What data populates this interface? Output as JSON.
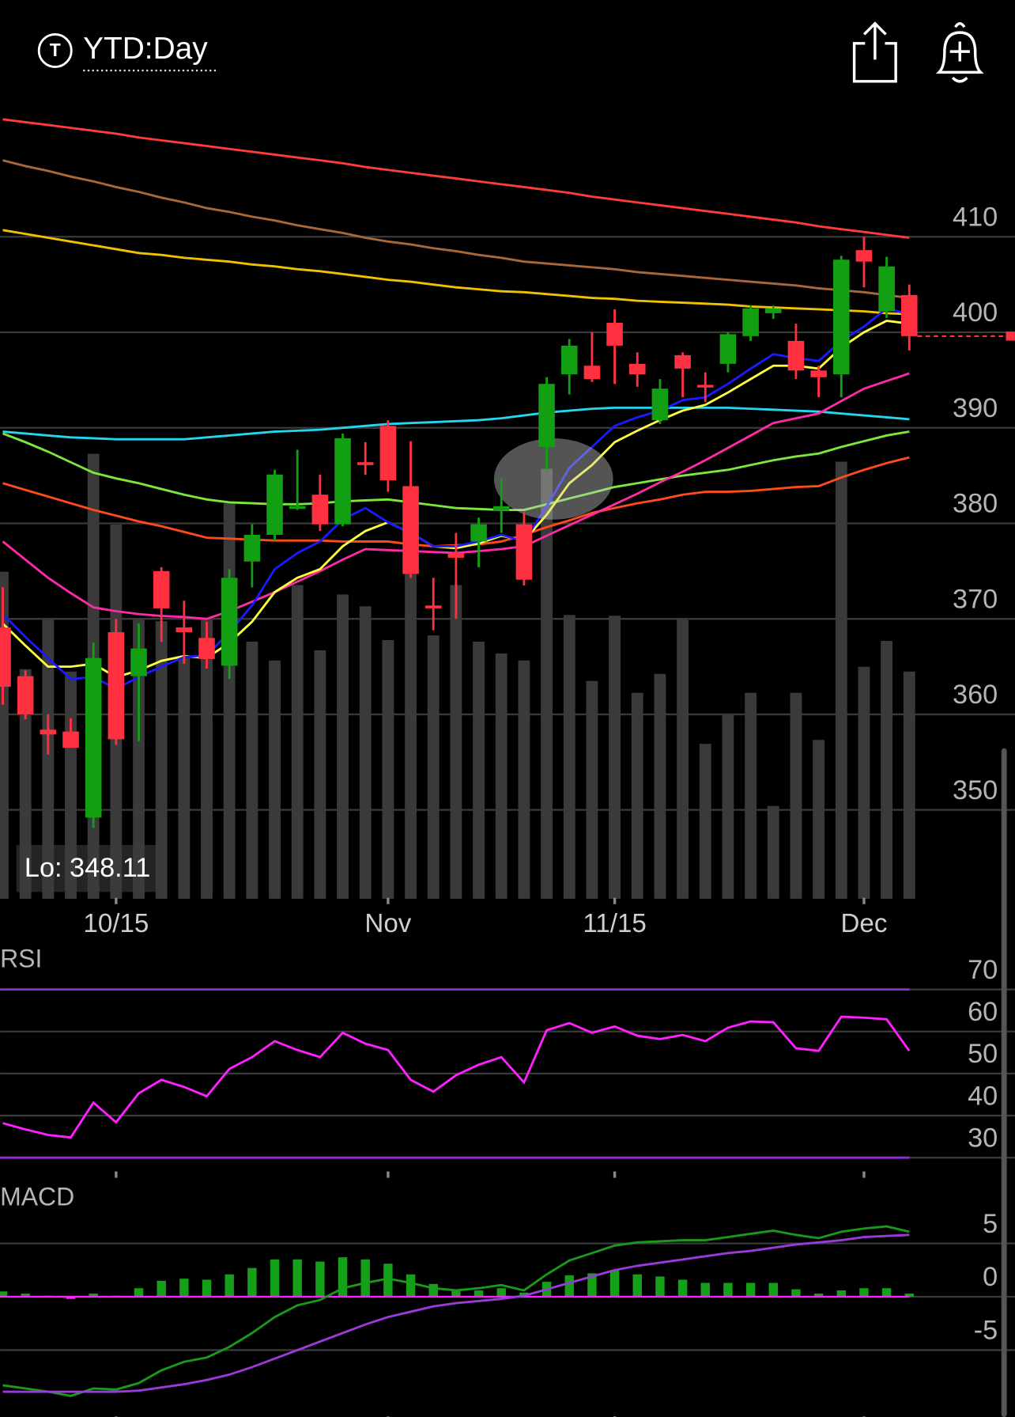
{
  "header": {
    "title": "YTD:Day"
  },
  "chart_data": [
    {
      "type": "candlestick",
      "categories": [
        null,
        null,
        null,
        null,
        null,
        "10/15",
        null,
        null,
        null,
        null,
        null,
        null,
        null,
        null,
        null,
        null,
        null,
        "Nov",
        null,
        null,
        null,
        null,
        null,
        null,
        null,
        null,
        null,
        "11/15",
        null,
        null,
        null,
        null,
        null,
        null,
        null,
        null,
        null,
        null,
        "Dec",
        null,
        null
      ],
      "open": [
        369.1,
        364.0,
        358.4,
        358.2,
        349.2,
        368.6,
        364.0,
        375.0,
        369.1,
        368.0,
        365.1,
        376.0,
        378.8,
        381.6,
        383.0,
        379.9,
        386.4,
        390.2,
        383.9,
        371.4,
        376.9,
        378.1,
        381.3,
        379.9,
        388.0,
        395.6,
        396.5,
        401.0,
        396.7,
        390.8,
        397.6,
        394.5,
        396.7,
        399.6,
        402.0,
        399.1,
        396.0,
        395.6,
        408.6,
        402.2,
        403.9
      ],
      "high": [
        373.3,
        364.6,
        360.0,
        359.6,
        367.5,
        370.0,
        369.5,
        375.4,
        371.9,
        369.7,
        375.2,
        379.9,
        385.6,
        387.7,
        385.1,
        389.4,
        388.5,
        390.8,
        388.6,
        374.3,
        379.0,
        380.6,
        384.7,
        381.2,
        395.3,
        399.3,
        400.0,
        402.4,
        397.9,
        395.1,
        397.9,
        395.8,
        400.0,
        402.8,
        402.8,
        400.9,
        396.5,
        408.0,
        410.0,
        407.9,
        405.0
      ],
      "low": [
        361.0,
        359.5,
        355.8,
        356.5,
        348.11,
        356.8,
        357.2,
        367.6,
        365.3,
        364.8,
        363.7,
        373.3,
        378.2,
        381.4,
        379.2,
        379.7,
        385.1,
        383.3,
        374.3,
        368.8,
        370.0,
        375.4,
        379.0,
        373.5,
        385.6,
        393.5,
        394.8,
        394.6,
        394.3,
        390.4,
        393.2,
        392.7,
        395.8,
        399.1,
        401.4,
        395.1,
        393.2,
        393.2,
        404.7,
        401.5,
        398.1
      ],
      "close": [
        362.9,
        360.0,
        357.9,
        356.5,
        365.9,
        357.4,
        366.9,
        371.1,
        368.6,
        365.8,
        374.3,
        378.8,
        385.1,
        381.8,
        379.9,
        388.9,
        386.1,
        384.5,
        374.7,
        371.1,
        376.4,
        379.9,
        381.8,
        374.1,
        394.6,
        398.6,
        395.1,
        398.6,
        395.6,
        394.1,
        396.2,
        394.3,
        399.8,
        402.5,
        402.5,
        396.0,
        395.3,
        407.6,
        407.4,
        406.9,
        399.6
      ],
      "up_color": "#12a012",
      "down_color": "#ff3040",
      "volume": {
        "color": "#3a3a3a",
        "ylim": [
          0,
          100
        ],
        "values": [
          41.6,
          29.2,
          35.5,
          28.9,
          56.6,
          47.6,
          35.5,
          35.3,
          30.6,
          35.5,
          50.3,
          32.7,
          30.3,
          39.9,
          31.6,
          38.7,
          37.2,
          32.9,
          45.7,
          33.5,
          39.9,
          32.7,
          31.2,
          30.3,
          54.7,
          36.1,
          27.7,
          36.0,
          26.2,
          28.6,
          35.7,
          19.7,
          23.4,
          26.2,
          11.8,
          26.2,
          20.2,
          55.6,
          29.5,
          32.8,
          28.9
        ]
      },
      "lines": [
        {
          "color": "#ff3b3b",
          "values": [
            422.3,
            422.0,
            421.7,
            421.4,
            421.1,
            420.8,
            420.4,
            420.1,
            419.8,
            419.5,
            419.2,
            418.9,
            418.6,
            418.3,
            418.0,
            417.7,
            417.3,
            417.0,
            416.7,
            416.4,
            416.1,
            415.8,
            415.5,
            415.2,
            414.9,
            414.6,
            414.2,
            413.9,
            413.6,
            413.3,
            413.0,
            412.7,
            412.4,
            412.1,
            411.8,
            411.5,
            411.1,
            410.8,
            410.5,
            410.2,
            409.9
          ]
        },
        {
          "color": "#a8683a",
          "values": [
            418.0,
            417.4,
            416.9,
            416.3,
            415.8,
            415.2,
            414.7,
            414.1,
            413.6,
            413.0,
            412.6,
            412.1,
            411.7,
            411.2,
            410.8,
            410.4,
            409.9,
            409.5,
            409.2,
            408.8,
            408.5,
            408.1,
            407.8,
            407.4,
            407.2,
            407.0,
            406.8,
            406.6,
            406.3,
            406.1,
            405.9,
            405.7,
            405.5,
            405.3,
            405.1,
            404.9,
            404.6,
            404.4,
            404.2,
            403.9,
            403.6
          ]
        },
        {
          "color": "#f2c200",
          "values": [
            410.7,
            410.3,
            409.9,
            409.5,
            409.1,
            408.7,
            408.3,
            408.1,
            407.8,
            407.6,
            407.4,
            407.1,
            406.9,
            406.6,
            406.4,
            406.1,
            405.8,
            405.5,
            405.3,
            405.0,
            404.7,
            404.5,
            404.3,
            404.2,
            404.0,
            403.8,
            403.6,
            403.5,
            403.3,
            403.2,
            403.1,
            403.0,
            402.9,
            402.7,
            402.6,
            402.5,
            402.4,
            402.3,
            402.2,
            402.0,
            401.9
          ]
        },
        {
          "color": "#22d8f0",
          "values": [
            389.6,
            389.4,
            389.2,
            389.0,
            388.9,
            388.8,
            388.8,
            388.8,
            388.8,
            389.0,
            389.2,
            389.4,
            389.6,
            389.7,
            389.8,
            390.0,
            390.2,
            390.4,
            390.5,
            390.6,
            390.7,
            390.8,
            391.0,
            391.3,
            391.6,
            391.8,
            392.0,
            392.1,
            392.1,
            392.1,
            392.1,
            392.1,
            392.1,
            392.0,
            391.9,
            391.8,
            391.7,
            391.5,
            391.3,
            391.1,
            390.9
          ]
        },
        {
          "color": "#7be83a",
          "values": [
            389.4,
            388.5,
            387.5,
            386.4,
            385.3,
            384.7,
            384.2,
            383.6,
            383.0,
            382.5,
            382.2,
            382.1,
            382.0,
            382.0,
            382.1,
            382.3,
            382.4,
            382.5,
            382.2,
            381.9,
            381.6,
            381.5,
            381.4,
            381.4,
            382.0,
            382.6,
            383.2,
            383.8,
            384.2,
            384.6,
            385.0,
            385.3,
            385.6,
            386.1,
            386.6,
            387.0,
            387.3,
            388.0,
            388.6,
            389.2,
            389.6
          ]
        },
        {
          "color": "#ff4a1a",
          "values": [
            384.2,
            383.5,
            382.8,
            382.1,
            381.4,
            380.8,
            380.2,
            379.7,
            379.1,
            378.5,
            378.4,
            378.3,
            378.2,
            378.2,
            378.2,
            378.1,
            378.1,
            378.1,
            377.8,
            377.6,
            377.7,
            377.8,
            378.1,
            378.8,
            379.6,
            380.3,
            381.1,
            381.6,
            382.1,
            382.5,
            383.0,
            383.3,
            383.3,
            383.4,
            383.6,
            383.8,
            383.9,
            384.8,
            385.6,
            386.3,
            386.9
          ]
        },
        {
          "color": "#ff2aa8",
          "values": [
            378.1,
            376.2,
            374.3,
            372.7,
            371.2,
            370.8,
            370.5,
            370.3,
            370.2,
            370.0,
            370.8,
            371.8,
            372.8,
            373.9,
            375.0,
            376.2,
            377.3,
            377.2,
            377.1,
            377.0,
            376.9,
            377.1,
            377.3,
            377.6,
            378.7,
            379.8,
            380.9,
            382.0,
            383.1,
            384.3,
            385.4,
            386.6,
            387.9,
            389.2,
            390.5,
            391.0,
            391.5,
            392.8,
            394.1,
            394.9,
            395.7
          ]
        },
        {
          "color": "#ffff40",
          "values": [
            369.5,
            367.2,
            365.0,
            365.0,
            365.3,
            363.9,
            364.6,
            365.6,
            366.1,
            365.9,
            367.5,
            369.7,
            372.8,
            374.3,
            375.2,
            377.6,
            379.2,
            380.1,
            379.0,
            377.6,
            377.4,
            377.9,
            378.7,
            378.2,
            380.9,
            384.2,
            386.1,
            388.5,
            389.7,
            390.8,
            391.8,
            392.4,
            393.7,
            395.1,
            396.5,
            396.5,
            396.2,
            398.4,
            400.0,
            401.2,
            400.9
          ]
        },
        {
          "color": "#1a1aff",
          "values": [
            370.5,
            368.1,
            365.9,
            363.7,
            363.9,
            362.7,
            363.9,
            365.0,
            366.0,
            366.2,
            368.6,
            371.4,
            375.2,
            376.9,
            378.1,
            380.4,
            381.6,
            380.1,
            379.0,
            377.6,
            377.6,
            378.1,
            378.8,
            378.1,
            381.8,
            385.8,
            388.0,
            390.2,
            391.1,
            391.8,
            392.9,
            393.2,
            394.6,
            396.2,
            397.7,
            397.3,
            397.0,
            399.1,
            400.6,
            402.5,
            401.9
          ]
        }
      ],
      "ylim": [
        340.7,
        423
      ],
      "yticks": [
        410,
        400,
        390,
        380,
        370,
        360,
        350
      ],
      "grid": true,
      "annotation": "Lo: 348.11",
      "last_price_line": true
    },
    {
      "type": "line",
      "title": "RSI",
      "color": "#ff1fff",
      "values": [
        38.2,
        36.7,
        35.4,
        34.8,
        43.1,
        38.4,
        45.3,
        48.5,
        46.8,
        44.6,
        51.1,
        53.9,
        57.7,
        55.6,
        53.9,
        59.7,
        57.1,
        55.6,
        48.5,
        45.7,
        49.6,
        52.1,
        53.9,
        47.9,
        60.3,
        62.0,
        59.7,
        61.2,
        59.0,
        58.2,
        59.2,
        57.7,
        60.9,
        62.4,
        62.2,
        56.0,
        55.4,
        63.5,
        63.3,
        62.9,
        55.4
      ],
      "ylim": [
        26.5,
        79.5
      ],
      "yticks": [
        70,
        60,
        50,
        40,
        30
      ],
      "grid": true,
      "levels": [
        70,
        30
      ],
      "level_color": "#8e2fd0"
    },
    {
      "type": "macd",
      "title": "MACD",
      "series": [
        {
          "color": "#1a9a1a",
          "values": [
            -8.3,
            -8.6,
            -8.9,
            -9.3,
            -8.6,
            -8.7,
            -8.1,
            -6.9,
            -6.1,
            -5.7,
            -4.7,
            -3.4,
            -1.9,
            -0.8,
            -0.3,
            0.8,
            1.3,
            1.7,
            1.3,
            0.8,
            0.6,
            0.8,
            1.1,
            0.6,
            2.1,
            3.4,
            4.1,
            4.8,
            5.1,
            5.2,
            5.3,
            5.3,
            5.6,
            5.9,
            6.2,
            5.8,
            5.5,
            6.1,
            6.4,
            6.6,
            6.1
          ]
        },
        {
          "color": "#9a3ad8",
          "values": [
            -8.9,
            -8.9,
            -8.9,
            -8.9,
            -8.9,
            -8.9,
            -8.8,
            -8.5,
            -8.2,
            -7.8,
            -7.3,
            -6.6,
            -5.8,
            -5.0,
            -4.2,
            -3.4,
            -2.6,
            -1.9,
            -1.4,
            -0.9,
            -0.6,
            -0.4,
            -0.2,
            0.1,
            0.7,
            1.3,
            1.9,
            2.5,
            2.9,
            3.2,
            3.5,
            3.8,
            4.1,
            4.3,
            4.6,
            4.9,
            5.1,
            5.3,
            5.6,
            5.7,
            5.8
          ]
        }
      ],
      "histogram": {
        "color": "#15a01a",
        "negative_color": "#ff20ff",
        "values": [
          0.5,
          0.3,
          0.1,
          -0.2,
          0.3,
          0.1,
          0.8,
          1.5,
          1.7,
          1.6,
          2.1,
          2.7,
          3.5,
          3.5,
          3.3,
          3.7,
          3.5,
          3.1,
          2.1,
          1.2,
          0.7,
          0.6,
          0.8,
          0.4,
          1.4,
          2.0,
          2.2,
          2.5,
          2.1,
          1.9,
          1.6,
          1.3,
          1.3,
          1.3,
          1.3,
          0.7,
          0.3,
          0.6,
          0.8,
          0.8,
          0.3
        ]
      },
      "zero_line_color": "#ff20ff",
      "ylim": [
        -11.3,
        10.2
      ],
      "yticks": [
        5,
        0,
        -5
      ],
      "grid": true
    }
  ]
}
